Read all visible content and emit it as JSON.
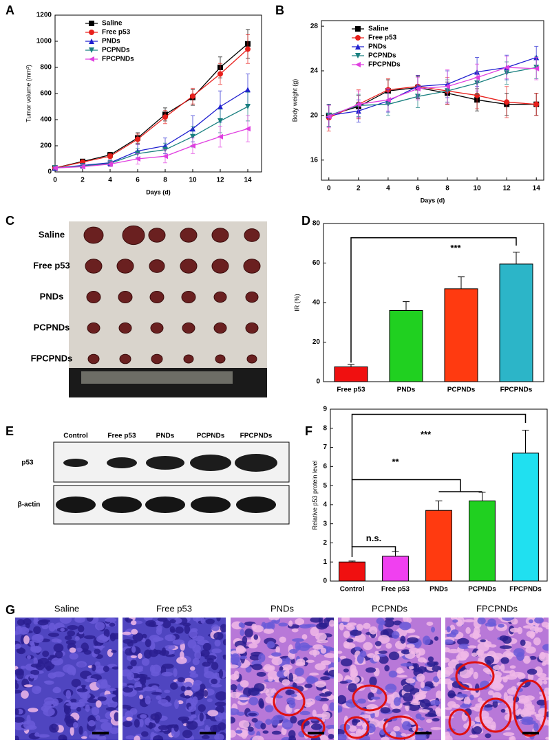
{
  "panel_labels": [
    "A",
    "B",
    "C",
    "D",
    "E",
    "F",
    "G"
  ],
  "tumor_photo": {
    "labels": [
      "Saline",
      "Free p53",
      "PNDs",
      "PCPNDs",
      "FPCPNDs"
    ]
  },
  "western_blot": {
    "lanes": [
      "Control",
      "Free p53",
      "PNDs",
      "PCPNDs",
      "FPCPNDs"
    ],
    "rows": [
      "p53",
      "β-actin"
    ]
  },
  "histology": {
    "labels": [
      "Saline",
      "Free p53",
      "PNDs",
      "PCPNDs",
      "FPCPNDs"
    ]
  },
  "chart_data": [
    {
      "type": "line",
      "xlabel": "Days (d)",
      "ylabel": "Tumor volume (mm³)",
      "x": [
        0,
        2,
        4,
        6,
        8,
        10,
        12,
        14
      ],
      "xlim": [
        0,
        15
      ],
      "xticks": [
        0,
        2,
        4,
        6,
        8,
        10,
        12,
        14
      ],
      "ylim": [
        0,
        1200
      ],
      "yticks": [
        0,
        200,
        400,
        600,
        800,
        1000,
        1200
      ],
      "legend": "upper left",
      "series": [
        {
          "name": "Saline",
          "color": "#000000",
          "marker": "square",
          "values": [
            30,
            80,
            130,
            260,
            440,
            570,
            800,
            980
          ],
          "errors": [
            10,
            15,
            20,
            40,
            50,
            60,
            80,
            110
          ]
        },
        {
          "name": "Free p53",
          "color": "#e8201c",
          "marker": "circle",
          "values": [
            30,
            75,
            120,
            250,
            420,
            580,
            750,
            940
          ],
          "errors": [
            10,
            15,
            20,
            40,
            50,
            60,
            80,
            110
          ]
        },
        {
          "name": "PNDs",
          "color": "#2020d0",
          "marker": "triangle-up",
          "values": [
            30,
            50,
            70,
            160,
            200,
            330,
            500,
            630
          ],
          "errors": [
            10,
            15,
            20,
            50,
            60,
            100,
            120,
            120
          ]
        },
        {
          "name": "PCPNDs",
          "color": "#1a8080",
          "marker": "triangle-down",
          "values": [
            30,
            45,
            65,
            140,
            170,
            270,
            390,
            500
          ],
          "errors": [
            10,
            15,
            20,
            40,
            50,
            80,
            90,
            110
          ]
        },
        {
          "name": "FPCPNDs",
          "color": "#e040e0",
          "marker": "triangle-left",
          "values": [
            30,
            40,
            60,
            100,
            120,
            200,
            270,
            330
          ],
          "errors": [
            10,
            15,
            20,
            40,
            50,
            60,
            80,
            100
          ]
        }
      ]
    },
    {
      "type": "line",
      "xlabel": "Days (d)",
      "ylabel": "Body weight (g)",
      "x": [
        0,
        2,
        4,
        6,
        8,
        10,
        12,
        14
      ],
      "xlim": [
        -0.5,
        14.5
      ],
      "xticks": [
        0,
        2,
        4,
        6,
        8,
        10,
        12,
        14
      ],
      "ylim": [
        14.2,
        28.5
      ],
      "yticks": [
        16,
        20,
        24,
        28
      ],
      "legend": "upper left",
      "series": [
        {
          "name": "Saline",
          "color": "#000000",
          "marker": "square",
          "values": [
            20,
            20.8,
            22.2,
            22.5,
            22,
            21.4,
            21,
            21
          ],
          "errors": [
            1,
            1,
            1,
            1,
            1,
            1,
            1,
            1
          ]
        },
        {
          "name": "Free p53",
          "color": "#e8201c",
          "marker": "circle",
          "values": [
            19.8,
            21,
            22.3,
            22.6,
            22.2,
            21.8,
            21.2,
            21
          ],
          "errors": [
            1.2,
            1.3,
            1,
            1,
            1.2,
            1.2,
            1.4,
            1
          ]
        },
        {
          "name": "PNDs",
          "color": "#2020d0",
          "marker": "triangle-up",
          "values": [
            20,
            20.4,
            21.3,
            22.6,
            22.8,
            23.9,
            24.3,
            25.2
          ],
          "errors": [
            1,
            1,
            1,
            1,
            1.2,
            1.3,
            1.1,
            1
          ]
        },
        {
          "name": "PCPNDs",
          "color": "#1a8080",
          "marker": "triangle-down",
          "values": [
            20,
            20.9,
            21,
            21.7,
            22.2,
            22.9,
            23.8,
            24.3
          ],
          "errors": [
            1,
            1,
            1,
            1,
            1,
            1,
            1,
            1
          ]
        },
        {
          "name": "FPCPNDs",
          "color": "#e040e0",
          "marker": "triangle-left",
          "values": [
            19.9,
            21,
            21.4,
            22.4,
            22.6,
            23.4,
            24.3,
            24.2
          ],
          "errors": [
            1,
            1.2,
            1,
            1,
            1.5,
            1.2,
            1,
            1
          ]
        }
      ]
    },
    {
      "type": "bar",
      "ylabel": "IR (%)",
      "categories": [
        "Free p53",
        "PNDs",
        "PCPNDs",
        "FPCPNDs"
      ],
      "values": [
        7.5,
        36,
        47,
        59.5
      ],
      "errors": [
        1.2,
        4.5,
        6,
        6
      ],
      "colors": [
        "#f01010",
        "#20d020",
        "#ff3a10",
        "#2cb5c8"
      ],
      "ylim": [
        0,
        80
      ],
      "yticks": [
        0,
        20,
        40,
        60,
        80
      ],
      "annotations": [
        "***"
      ]
    },
    {
      "type": "bar",
      "ylabel": "Relative p53 protein level",
      "categories": [
        "Control",
        "Free p53",
        "PNDs",
        "PCPNDs",
        "FPCPNDs"
      ],
      "values": [
        1,
        1.3,
        3.7,
        4.2,
        6.7
      ],
      "errors": [
        0.05,
        0.25,
        0.5,
        0.45,
        1.2
      ],
      "colors": [
        "#f01010",
        "#f040f0",
        "#ff3a10",
        "#20d020",
        "#20e0f0"
      ],
      "ylim": [
        0,
        9
      ],
      "yticks": [
        0,
        1,
        2,
        3,
        4,
        5,
        6,
        7,
        8,
        9
      ],
      "annotations": [
        "n.s.",
        "**",
        "***"
      ]
    }
  ]
}
